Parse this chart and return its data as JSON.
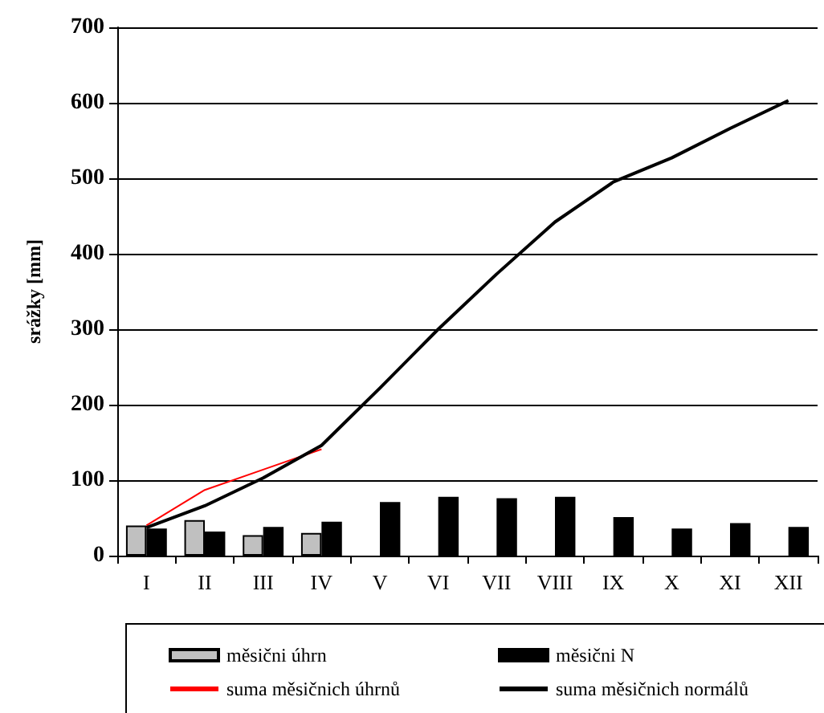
{
  "chart_data": {
    "type": "bar",
    "ylabel": "srážky [mm]",
    "categories": [
      "I",
      "II",
      "III",
      "IV",
      "V",
      "VI",
      "VII",
      "VIII",
      "IX",
      "X",
      "XI",
      "XII"
    ],
    "series": [
      {
        "name": "měsični úhrn",
        "color": "#c0c0c0",
        "values": [
          40,
          47,
          27,
          30,
          null,
          null,
          null,
          null,
          null,
          null,
          null,
          null
        ]
      },
      {
        "name": "měsični N",
        "color": "#000000",
        "values": [
          36,
          32,
          38,
          45,
          71,
          78,
          76,
          78,
          51,
          36,
          43,
          38
        ]
      },
      {
        "name": "suma měsičnich úhrnů",
        "type": "line",
        "color": "#ff0000",
        "values": [
          40,
          87,
          114,
          141,
          null,
          null,
          null,
          null,
          null,
          null,
          null,
          null
        ]
      },
      {
        "name": "suma měsičnich normálů",
        "type": "line",
        "color": "#000000",
        "values": [
          37,
          66,
          103,
          146,
          222,
          300,
          373,
          442,
          495,
          527,
          566,
          603
        ]
      }
    ],
    "ylim": [
      0,
      700
    ],
    "yticks": [
      0,
      100,
      200,
      300,
      400,
      500,
      600,
      700
    ],
    "grid": "y",
    "legend": "bottom",
    "marker": "none"
  }
}
